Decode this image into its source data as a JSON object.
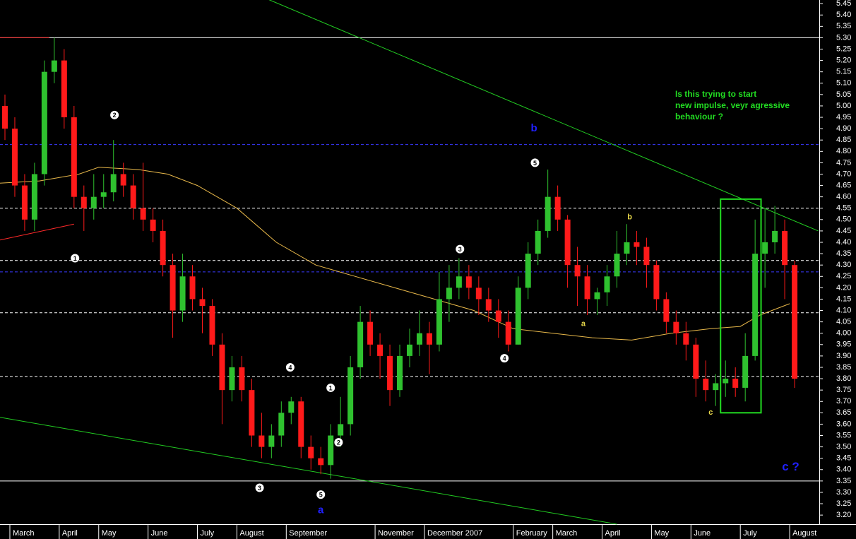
{
  "chart_data": {
    "type": "candlestick",
    "up_color": "#2fc12f",
    "down_color": "#ff1a1a",
    "ylim": [
      3.16,
      5.466
    ],
    "yticks": [
      5.45,
      {
        "value": 5.4,
        "label": "5.40"
      },
      5.35,
      {
        "value": 5.3,
        "label": "5.30"
      },
      5.25,
      {
        "value": 5.2,
        "label": "5.20"
      },
      5.15,
      {
        "value": 5.1,
        "label": "5.10"
      },
      5.05,
      {
        "value": 5,
        "label": "5.00"
      },
      4.95,
      {
        "value": 4.9,
        "label": "4.90"
      },
      4.85,
      {
        "value": 4.8,
        "label": "4.80"
      },
      4.75,
      {
        "value": 4.7,
        "label": "4.70"
      },
      4.65,
      {
        "value": 4.6,
        "label": "4.60"
      },
      4.55,
      {
        "value": 4.5,
        "label": "4.50"
      },
      4.45,
      {
        "value": 4.4,
        "label": "4.40"
      },
      4.35,
      {
        "value": 4.3,
        "label": "4.30"
      },
      4.25,
      {
        "value": 4.2,
        "label": "4.20"
      },
      4.15,
      {
        "value": 4.1,
        "label": "4.10"
      },
      4.05,
      {
        "value": 4,
        "label": "4.00"
      },
      3.95,
      {
        "value": 3.9,
        "label": "3.90"
      },
      3.85,
      {
        "value": 3.8,
        "label": "3.80"
      },
      3.75,
      {
        "value": 3.7,
        "label": "3.70"
      },
      3.65,
      {
        "value": 3.6,
        "label": "3.60"
      },
      3.55,
      {
        "value": 3.5,
        "label": "3.50"
      },
      3.45,
      {
        "value": 3.4,
        "label": "3.40"
      },
      3.35,
      {
        "value": 3.3,
        "label": "3.30"
      },
      3.25,
      {
        "value": 3.2,
        "label": "3.20"
      }
    ],
    "xlim": [
      0,
      83
    ],
    "xticks": [
      {
        "value": 1,
        "label": "March"
      },
      {
        "value": 6,
        "label": "April"
      },
      {
        "value": 10,
        "label": "May"
      },
      {
        "value": 15,
        "label": "June"
      },
      {
        "value": 20,
        "label": "July"
      },
      {
        "value": 24,
        "label": "August"
      },
      {
        "value": 29,
        "label": "September"
      },
      {
        "value": 38,
        "label": "November"
      },
      {
        "value": 43,
        "label": "December 2007"
      },
      {
        "value": 52,
        "label": "February"
      },
      {
        "value": 56,
        "label": "March"
      },
      {
        "value": 61,
        "label": "April"
      },
      {
        "value": 66,
        "label": "May"
      },
      {
        "value": 70,
        "label": "June"
      },
      {
        "value": 75,
        "label": "July"
      },
      {
        "value": 80,
        "label": "August"
      }
    ],
    "candles": [
      [
        5.0,
        5.05,
        4.85,
        4.9
      ],
      [
        4.9,
        4.95,
        4.6,
        4.65
      ],
      [
        4.65,
        4.7,
        4.45,
        4.5
      ],
      [
        4.5,
        4.75,
        4.45,
        4.7
      ],
      [
        4.7,
        5.2,
        4.65,
        5.15
      ],
      [
        5.15,
        5.3,
        5.1,
        5.2
      ],
      [
        5.2,
        5.25,
        4.9,
        4.95
      ],
      [
        4.95,
        5.0,
        4.55,
        4.6
      ],
      [
        4.6,
        4.65,
        4.45,
        4.55
      ],
      [
        4.55,
        4.7,
        4.5,
        4.6
      ],
      [
        4.6,
        4.7,
        4.55,
        4.62
      ],
      [
        4.62,
        4.85,
        4.58,
        4.7
      ],
      [
        4.7,
        4.75,
        4.6,
        4.65
      ],
      [
        4.65,
        4.7,
        4.5,
        4.55
      ],
      [
        4.55,
        4.75,
        4.45,
        4.5
      ],
      [
        4.5,
        4.55,
        4.4,
        4.45
      ],
      [
        4.45,
        4.5,
        4.25,
        4.3
      ],
      [
        4.3,
        4.35,
        3.98,
        4.1
      ],
      [
        4.1,
        4.35,
        4.05,
        4.25
      ],
      [
        4.25,
        4.3,
        4.1,
        4.15
      ],
      [
        4.15,
        4.2,
        4.0,
        4.12
      ],
      [
        4.12,
        4.15,
        3.9,
        3.95
      ],
      [
        3.95,
        4.0,
        3.6,
        3.75
      ],
      [
        3.75,
        3.9,
        3.7,
        3.85
      ],
      [
        3.85,
        3.9,
        3.7,
        3.75
      ],
      [
        3.75,
        3.8,
        3.5,
        3.55
      ],
      [
        3.55,
        3.65,
        3.45,
        3.5
      ],
      [
        3.5,
        3.6,
        3.45,
        3.55
      ],
      [
        3.55,
        3.7,
        3.5,
        3.65
      ],
      [
        3.65,
        3.72,
        3.6,
        3.7
      ],
      [
        3.7,
        3.72,
        3.45,
        3.5
      ],
      [
        3.5,
        3.55,
        3.4,
        3.45
      ],
      [
        3.45,
        3.5,
        3.38,
        3.42
      ],
      [
        3.42,
        3.6,
        3.36,
        3.55
      ],
      [
        3.55,
        3.72,
        3.5,
        3.6
      ],
      [
        3.6,
        3.9,
        3.55,
        3.85
      ],
      [
        3.85,
        4.12,
        3.8,
        4.05
      ],
      [
        4.05,
        4.1,
        3.9,
        3.95
      ],
      [
        3.95,
        4.0,
        3.8,
        3.9
      ],
      [
        3.9,
        3.95,
        3.68,
        3.75
      ],
      [
        3.75,
        3.95,
        3.72,
        3.9
      ],
      [
        3.9,
        4.02,
        3.85,
        3.95
      ],
      [
        3.95,
        4.1,
        3.9,
        4.0
      ],
      [
        4.0,
        4.05,
        3.82,
        3.95
      ],
      [
        3.95,
        4.27,
        3.92,
        4.15
      ],
      [
        4.15,
        4.3,
        4.05,
        4.2
      ],
      [
        4.2,
        4.33,
        4.15,
        4.25
      ],
      [
        4.25,
        4.3,
        4.15,
        4.2
      ],
      [
        4.2,
        4.25,
        4.08,
        4.15
      ],
      [
        4.15,
        4.2,
        4.05,
        4.1
      ],
      [
        4.1,
        4.15,
        3.98,
        4.05
      ],
      [
        4.05,
        4.1,
        3.92,
        3.95
      ],
      [
        3.95,
        4.25,
        3.95,
        4.2
      ],
      [
        4.2,
        4.4,
        4.15,
        4.35
      ],
      [
        4.35,
        4.5,
        4.3,
        4.45
      ],
      [
        4.45,
        4.72,
        4.42,
        4.6
      ],
      [
        4.6,
        4.65,
        4.45,
        4.5
      ],
      [
        4.5,
        4.52,
        4.2,
        4.3
      ],
      [
        4.3,
        4.38,
        4.12,
        4.25
      ],
      [
        4.25,
        4.3,
        4.08,
        4.15
      ],
      [
        4.15,
        4.2,
        4.08,
        4.18
      ],
      [
        4.18,
        4.3,
        4.12,
        4.25
      ],
      [
        4.25,
        4.45,
        4.2,
        4.35
      ],
      [
        4.35,
        4.48,
        4.3,
        4.4
      ],
      [
        4.4,
        4.45,
        4.3,
        4.38
      ],
      [
        4.38,
        4.42,
        4.2,
        4.3
      ],
      [
        4.3,
        4.32,
        4.1,
        4.15
      ],
      [
        4.15,
        4.18,
        4.0,
        4.05
      ],
      [
        4.05,
        4.1,
        3.95,
        4.0
      ],
      [
        4.0,
        4.05,
        3.88,
        3.95
      ],
      [
        3.95,
        3.98,
        3.72,
        3.8
      ],
      [
        3.8,
        3.88,
        3.7,
        3.75
      ],
      [
        3.75,
        3.82,
        3.68,
        3.78
      ],
      [
        3.78,
        3.88,
        3.72,
        3.8
      ],
      [
        3.8,
        3.85,
        3.72,
        3.76
      ],
      [
        3.76,
        4.0,
        3.7,
        3.9
      ],
      [
        3.9,
        4.5,
        3.88,
        4.35
      ],
      [
        4.35,
        4.55,
        4.2,
        4.4
      ],
      [
        4.4,
        4.56,
        4.35,
        4.45
      ],
      [
        4.45,
        4.5,
        4.15,
        4.3
      ],
      [
        4.3,
        4.32,
        3.76,
        3.8
      ]
    ],
    "moving_average": {
      "color": "#e8b84a",
      "x": [
        0,
        4,
        8,
        10,
        14,
        17,
        20,
        24,
        28,
        32,
        36,
        40,
        44,
        48,
        52,
        56,
        60,
        64,
        68,
        72,
        75,
        77,
        80
      ],
      "values": [
        4.66,
        4.67,
        4.7,
        4.73,
        4.72,
        4.7,
        4.65,
        4.55,
        4.4,
        4.3,
        4.25,
        4.2,
        4.15,
        4.1,
        4.02,
        4.0,
        3.98,
        3.97,
        4.0,
        4.02,
        4.03,
        4.08,
        4.13
      ]
    },
    "levels": [
      {
        "value": 5.3,
        "color": "#ffffff",
        "dashed": false
      },
      {
        "value": 3.35,
        "color": "#ffffff",
        "dashed": false
      },
      {
        "value": 4.83,
        "color": "#3a3aff",
        "dashed": true
      },
      {
        "value": 4.27,
        "color": "#3a3aff",
        "dashed": true
      },
      {
        "value": 4.55,
        "color": "#ffffff",
        "dashed": true
      },
      {
        "value": 4.32,
        "color": "#ffffff",
        "dashed": true
      },
      {
        "value": 4.09,
        "color": "#ffffff",
        "dashed": true
      },
      {
        "value": 3.81,
        "color": "#ffffff",
        "dashed": true
      }
    ],
    "trendlines": [
      {
        "color": "#22cc22",
        "points": [
          [
            27.1,
            5.47
          ],
          [
            82.9,
            4.45
          ]
        ]
      },
      {
        "color": "#22cc22",
        "points": [
          [
            0,
            3.63
          ],
          [
            62.5,
            3.16
          ]
        ]
      },
      {
        "color": "#ff2a2a",
        "points": [
          [
            0,
            4.41
          ],
          [
            7.5,
            4.48
          ]
        ]
      },
      {
        "color": "#ff2a2a",
        "points": [
          [
            0,
            5.3
          ],
          [
            5,
            5.3
          ]
        ]
      }
    ],
    "box": {
      "color": "#22dd22",
      "x": [
        73,
        77.1
      ],
      "y": [
        3.65,
        4.59
      ]
    },
    "wave_marks": [
      {
        "text": "2",
        "x": 11.6,
        "y": 4.96
      },
      {
        "text": "1",
        "x": 7.6,
        "y": 4.33
      },
      {
        "text": "4",
        "x": 29.4,
        "y": 3.85
      },
      {
        "text": "1",
        "x": 33.5,
        "y": 3.76
      },
      {
        "text": "2",
        "x": 34.3,
        "y": 3.52
      },
      {
        "text": "3",
        "x": 26.3,
        "y": 3.32
      },
      {
        "text": "5",
        "x": 32.5,
        "y": 3.29
      },
      {
        "text": "3",
        "x": 46.6,
        "y": 4.37
      },
      {
        "text": "4",
        "x": 51.1,
        "y": 3.89
      },
      {
        "text": "5",
        "x": 54.2,
        "y": 4.75
      }
    ],
    "annotations": [
      {
        "text": "b",
        "x": 54.1,
        "y": 4.9,
        "color": "#2020ff",
        "size": 15
      },
      {
        "text": "a",
        "x": 32.5,
        "y": 3.22,
        "color": "#2020ff",
        "size": 15
      },
      {
        "text": "c ?",
        "x": 80.1,
        "y": 3.41,
        "color": "#2020ff",
        "size": 17
      },
      {
        "text": "a",
        "x": 59.1,
        "y": 4.04,
        "color": "#e8d84a",
        "size": 11
      },
      {
        "text": "b",
        "x": 63.8,
        "y": 4.51,
        "color": "#e8d84a",
        "size": 11
      },
      {
        "text": "c",
        "x": 72,
        "y": 3.65,
        "color": "#e8d84a",
        "size": 11
      }
    ],
    "comment": {
      "color": "#22dd22",
      "x": 68.4,
      "y": 5.0,
      "lines": [
        "Is this trying to start",
        "new impulse, veyr agressive",
        "behaviour ?"
      ]
    }
  }
}
